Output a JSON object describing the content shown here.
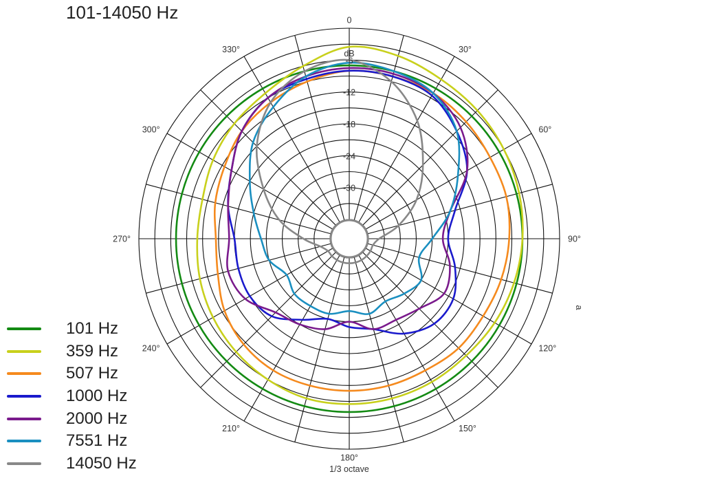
{
  "title": "101-14050 Hz",
  "chart_data": {
    "type": "polar",
    "title": "101-14050 Hz",
    "radial_unit_label": "dB",
    "bottom_note": "1/3 octave",
    "side_mark": "a",
    "radial_range": [
      -36,
      0
    ],
    "radial_ticks": [
      {
        "value": -6,
        "label": "-6"
      },
      {
        "value": -12,
        "label": "-12"
      },
      {
        "value": -18,
        "label": "-18"
      },
      {
        "value": -24,
        "label": "-24"
      },
      {
        "value": -30,
        "label": "-30"
      }
    ],
    "angle_labels": [
      {
        "deg": 0,
        "label": "0"
      },
      {
        "deg": 30,
        "label": "30°"
      },
      {
        "deg": 60,
        "label": "60°"
      },
      {
        "deg": 90,
        "label": "90°"
      },
      {
        "deg": 120,
        "label": "120°"
      },
      {
        "deg": 150,
        "label": "150°"
      },
      {
        "deg": 180,
        "label": "180°"
      },
      {
        "deg": 210,
        "label": "210°"
      },
      {
        "deg": 240,
        "label": "240°"
      },
      {
        "deg": 270,
        "label": "270°"
      },
      {
        "deg": 300,
        "label": "300°"
      },
      {
        "deg": 330,
        "label": "330°"
      }
    ],
    "grid": true,
    "legend_position": "bottom-left",
    "angles": [
      0,
      15,
      30,
      45,
      60,
      75,
      90,
      105,
      120,
      135,
      150,
      165,
      180,
      195,
      210,
      225,
      240,
      255,
      270,
      285,
      300,
      315,
      330,
      345
    ],
    "series": [
      {
        "name": "101 Hz",
        "color": "#138a13",
        "values": [
          -7,
          -7,
          -7,
          -7,
          -7,
          -7,
          -7,
          -7,
          -7,
          -7,
          -7,
          -7,
          -7,
          -7,
          -7,
          -7,
          -7,
          -7,
          -7,
          -7,
          -7,
          -7,
          -7,
          -7
        ]
      },
      {
        "name": "359 Hz",
        "color": "#c8d01c",
        "values": [
          -3.5,
          -4,
          -5,
          -5.5,
          -6,
          -6.5,
          -7,
          -7.5,
          -8,
          -8.5,
          -8.5,
          -8.5,
          -8.5,
          -8.5,
          -9,
          -9.5,
          -10,
          -10.5,
          -11,
          -11,
          -10,
          -9,
          -8,
          -6
        ]
      },
      {
        "name": "507 Hz",
        "color": "#f58a1e",
        "values": [
          -8,
          -8,
          -8,
          -8.5,
          -9,
          -9,
          -9.5,
          -10,
          -10.5,
          -10.5,
          -11,
          -11,
          -11,
          -11,
          -11,
          -11.5,
          -12.5,
          -14,
          -14.5,
          -13.5,
          -12.5,
          -11,
          -10,
          -9
        ]
      },
      {
        "name": "1000 Hz",
        "color": "#1a1acc",
        "values": [
          -8,
          -8,
          -8.5,
          -11,
          -14,
          -19,
          -21,
          -19,
          -17,
          -17,
          -19,
          -22,
          -23,
          -24,
          -22,
          -19,
          -18,
          -18,
          -18,
          -16,
          -14,
          -11,
          -9,
          -8.5
        ]
      },
      {
        "name": "2000 Hz",
        "color": "#7a1a8c",
        "values": [
          -7.5,
          -7.5,
          -8,
          -10,
          -14,
          -20,
          -22,
          -20,
          -19,
          -21,
          -22,
          -22,
          -24,
          -22,
          -21,
          -20,
          -17,
          -16,
          -17,
          -16,
          -14,
          -11,
          -9,
          -8
        ]
      },
      {
        "name": "7551 Hz",
        "color": "#1a8fc0",
        "values": [
          -6.5,
          -7,
          -8,
          -11,
          -16,
          -20,
          -24,
          -26,
          -24,
          -25,
          -26,
          -25,
          -26,
          -25,
          -25,
          -25,
          -26,
          -24,
          -23,
          -21,
          -18,
          -14,
          -11,
          -8
        ]
      },
      {
        "name": "14050 Hz",
        "color": "#888888",
        "values": [
          -6,
          -9,
          -14,
          -20,
          -25,
          -30,
          -34,
          -35,
          -35,
          -35,
          -35,
          -35,
          -35,
          -35,
          -35,
          -35,
          -35,
          -34,
          -31,
          -26,
          -21,
          -15,
          -10,
          -7
        ]
      }
    ]
  }
}
